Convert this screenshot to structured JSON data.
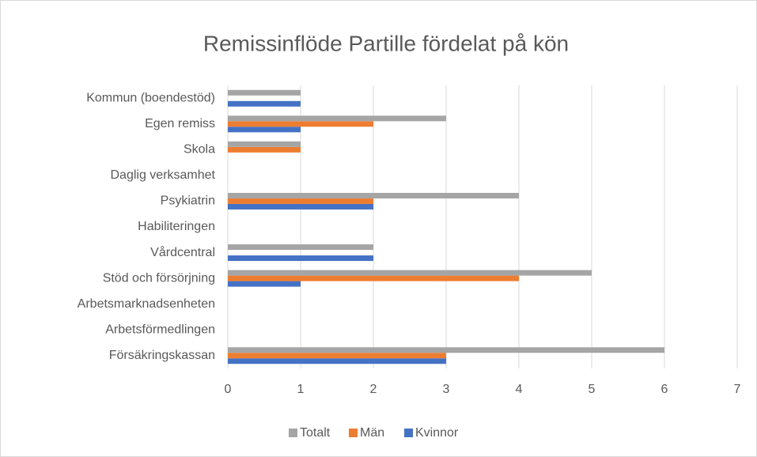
{
  "chart_data": {
    "type": "hbar",
    "title": "Remissinflöde Partille fördelat på kön",
    "categories": [
      "Försäkringskassan",
      "Arbetsförmedlingen",
      "Arbetsmarknadsenheten",
      "Stöd och försörjning",
      "Vårdcentral",
      "Habiliteringen",
      "Psykiatrin",
      "Daglig verksamhet",
      "Skola",
      "Egen remiss",
      "Kommun (boendestöd)"
    ],
    "series": [
      {
        "name": "Kvinnor",
        "color": "#4472c4",
        "values": [
          3,
          0,
          0,
          1,
          2,
          0,
          2,
          0,
          0,
          1,
          1
        ]
      },
      {
        "name": "Män",
        "color": "#ed7d31",
        "values": [
          3,
          0,
          0,
          4,
          0,
          0,
          2,
          0,
          1,
          2,
          0
        ]
      },
      {
        "name": "Totalt",
        "color": "#a5a5a5",
        "values": [
          6,
          0,
          0,
          5,
          2,
          0,
          4,
          0,
          1,
          3,
          1
        ]
      }
    ],
    "xlim": [
      0,
      7
    ],
    "xticks": [
      0,
      1,
      2,
      3,
      4,
      5,
      6,
      7
    ],
    "grid": true,
    "legend": "bottom"
  }
}
